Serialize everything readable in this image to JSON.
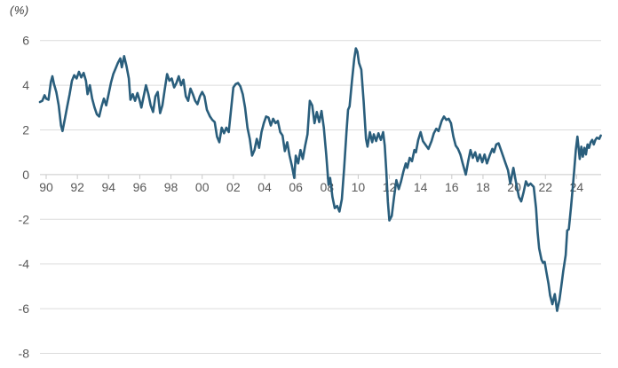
{
  "chart_data": {
    "type": "line",
    "title": "",
    "unit_label": "(%)",
    "legend": "none",
    "grid": "horizontal",
    "y_ticks": [
      6,
      4,
      2,
      0,
      -2,
      -4,
      -6,
      -8
    ],
    "ylim": [
      -8,
      6
    ],
    "x_tick_labels": [
      "90",
      "92",
      "94",
      "96",
      "98",
      "00",
      "02",
      "04",
      "06",
      "08",
      "10",
      "12",
      "14",
      "16",
      "18",
      "20",
      "22",
      "24"
    ],
    "x_tick_years": [
      1990,
      1992,
      1994,
      1996,
      1998,
      2000,
      2002,
      2004,
      2006,
      2008,
      2010,
      2012,
      2014,
      2016,
      2018,
      2020,
      2022,
      2024
    ],
    "x_range_years": [
      1989.6,
      2025.6
    ],
    "colors": {
      "line": "#2a5e7c",
      "gridline": "#dcdcdc",
      "axis_line": "#c9c9c9",
      "tick_label": "#595959",
      "unit_label": "#3a3a3a",
      "background": "#ffffff"
    },
    "series": [
      {
        "name": "year-over-year-change-pct",
        "points": [
          [
            1989.6,
            3.25
          ],
          [
            1989.75,
            3.3
          ],
          [
            1989.9,
            3.55
          ],
          [
            1990.0,
            3.4
          ],
          [
            1990.15,
            3.35
          ],
          [
            1990.3,
            4.15
          ],
          [
            1990.4,
            4.4
          ],
          [
            1990.5,
            4.05
          ],
          [
            1990.65,
            3.7
          ],
          [
            1990.8,
            3.1
          ],
          [
            1990.95,
            2.2
          ],
          [
            1991.05,
            1.95
          ],
          [
            1991.2,
            2.5
          ],
          [
            1991.35,
            3.05
          ],
          [
            1991.5,
            3.6
          ],
          [
            1991.65,
            4.2
          ],
          [
            1991.8,
            4.45
          ],
          [
            1991.95,
            4.3
          ],
          [
            1992.1,
            4.6
          ],
          [
            1992.25,
            4.35
          ],
          [
            1992.4,
            4.55
          ],
          [
            1992.55,
            4.2
          ],
          [
            1992.65,
            3.6
          ],
          [
            1992.8,
            4.0
          ],
          [
            1992.95,
            3.4
          ],
          [
            1993.1,
            3.0
          ],
          [
            1993.25,
            2.7
          ],
          [
            1993.4,
            2.6
          ],
          [
            1993.55,
            3.05
          ],
          [
            1993.7,
            3.4
          ],
          [
            1993.85,
            3.1
          ],
          [
            1994.0,
            3.6
          ],
          [
            1994.15,
            4.1
          ],
          [
            1994.3,
            4.5
          ],
          [
            1994.45,
            4.75
          ],
          [
            1994.6,
            5.0
          ],
          [
            1994.75,
            5.2
          ],
          [
            1994.85,
            4.8
          ],
          [
            1995.0,
            5.3
          ],
          [
            1995.15,
            4.85
          ],
          [
            1995.3,
            4.3
          ],
          [
            1995.4,
            3.35
          ],
          [
            1995.55,
            3.6
          ],
          [
            1995.7,
            3.3
          ],
          [
            1995.85,
            3.65
          ],
          [
            1996.0,
            3.3
          ],
          [
            1996.1,
            3.0
          ],
          [
            1996.25,
            3.5
          ],
          [
            1996.4,
            4.0
          ],
          [
            1996.55,
            3.6
          ],
          [
            1996.7,
            3.1
          ],
          [
            1996.85,
            2.8
          ],
          [
            1997.0,
            3.5
          ],
          [
            1997.15,
            3.7
          ],
          [
            1997.3,
            2.75
          ],
          [
            1997.45,
            3.1
          ],
          [
            1997.6,
            3.8
          ],
          [
            1997.75,
            4.5
          ],
          [
            1997.9,
            4.2
          ],
          [
            1998.05,
            4.3
          ],
          [
            1998.2,
            3.9
          ],
          [
            1998.35,
            4.1
          ],
          [
            1998.5,
            4.4
          ],
          [
            1998.65,
            4.0
          ],
          [
            1998.8,
            4.25
          ],
          [
            1998.95,
            3.5
          ],
          [
            1999.1,
            3.3
          ],
          [
            1999.25,
            3.85
          ],
          [
            1999.4,
            3.6
          ],
          [
            1999.55,
            3.3
          ],
          [
            1999.7,
            3.15
          ],
          [
            1999.85,
            3.5
          ],
          [
            2000.0,
            3.7
          ],
          [
            2000.15,
            3.5
          ],
          [
            2000.3,
            2.9
          ],
          [
            2000.5,
            2.6
          ],
          [
            2000.65,
            2.45
          ],
          [
            2000.8,
            2.35
          ],
          [
            2000.95,
            1.7
          ],
          [
            2001.1,
            1.45
          ],
          [
            2001.25,
            2.1
          ],
          [
            2001.4,
            1.85
          ],
          [
            2001.55,
            2.1
          ],
          [
            2001.7,
            1.9
          ],
          [
            2001.85,
            2.9
          ],
          [
            2002.0,
            3.9
          ],
          [
            2002.15,
            4.05
          ],
          [
            2002.3,
            4.1
          ],
          [
            2002.45,
            3.95
          ],
          [
            2002.6,
            3.6
          ],
          [
            2002.75,
            3.0
          ],
          [
            2002.9,
            2.1
          ],
          [
            2003.05,
            1.6
          ],
          [
            2003.2,
            0.85
          ],
          [
            2003.35,
            1.1
          ],
          [
            2003.5,
            1.6
          ],
          [
            2003.65,
            1.2
          ],
          [
            2003.8,
            1.9
          ],
          [
            2003.95,
            2.3
          ],
          [
            2004.1,
            2.6
          ],
          [
            2004.25,
            2.55
          ],
          [
            2004.4,
            2.2
          ],
          [
            2004.55,
            2.5
          ],
          [
            2004.7,
            2.3
          ],
          [
            2004.85,
            2.4
          ],
          [
            2005.0,
            1.9
          ],
          [
            2005.15,
            1.75
          ],
          [
            2005.3,
            1.05
          ],
          [
            2005.45,
            1.45
          ],
          [
            2005.6,
            0.85
          ],
          [
            2005.75,
            0.4
          ],
          [
            2005.9,
            -0.15
          ],
          [
            2006.0,
            0.85
          ],
          [
            2006.15,
            0.5
          ],
          [
            2006.3,
            1.1
          ],
          [
            2006.45,
            0.7
          ],
          [
            2006.6,
            1.3
          ],
          [
            2006.75,
            1.8
          ],
          [
            2006.9,
            3.3
          ],
          [
            2007.05,
            3.1
          ],
          [
            2007.2,
            2.3
          ],
          [
            2007.35,
            2.8
          ],
          [
            2007.5,
            2.35
          ],
          [
            2007.65,
            2.85
          ],
          [
            2007.8,
            2.1
          ],
          [
            2007.95,
            0.9
          ],
          [
            2008.1,
            -0.45
          ],
          [
            2008.2,
            -0.15
          ],
          [
            2008.35,
            -1.0
          ],
          [
            2008.5,
            -1.5
          ],
          [
            2008.65,
            -1.4
          ],
          [
            2008.8,
            -1.65
          ],
          [
            2008.95,
            -1.1
          ],
          [
            2009.1,
            0.3
          ],
          [
            2009.25,
            1.9
          ],
          [
            2009.35,
            2.9
          ],
          [
            2009.45,
            3.05
          ],
          [
            2009.6,
            4.2
          ],
          [
            2009.75,
            5.2
          ],
          [
            2009.85,
            5.65
          ],
          [
            2009.95,
            5.5
          ],
          [
            2010.05,
            5.0
          ],
          [
            2010.2,
            4.7
          ],
          [
            2010.35,
            3.3
          ],
          [
            2010.5,
            1.6
          ],
          [
            2010.6,
            1.25
          ],
          [
            2010.75,
            1.9
          ],
          [
            2010.9,
            1.45
          ],
          [
            2011.0,
            1.8
          ],
          [
            2011.15,
            1.5
          ],
          [
            2011.3,
            1.85
          ],
          [
            2011.45,
            1.55
          ],
          [
            2011.6,
            1.9
          ],
          [
            2011.7,
            1.3
          ],
          [
            2011.8,
            0.2
          ],
          [
            2011.9,
            -1.2
          ],
          [
            2012.0,
            -2.05
          ],
          [
            2012.15,
            -1.85
          ],
          [
            2012.3,
            -1.0
          ],
          [
            2012.45,
            -0.25
          ],
          [
            2012.6,
            -0.65
          ],
          [
            2012.75,
            -0.3
          ],
          [
            2012.9,
            0.15
          ],
          [
            2013.05,
            0.5
          ],
          [
            2013.15,
            0.3
          ],
          [
            2013.3,
            0.75
          ],
          [
            2013.45,
            0.6
          ],
          [
            2013.6,
            1.1
          ],
          [
            2013.7,
            1.0
          ],
          [
            2013.85,
            1.55
          ],
          [
            2014.0,
            1.9
          ],
          [
            2014.15,
            1.5
          ],
          [
            2014.35,
            1.3
          ],
          [
            2014.5,
            1.15
          ],
          [
            2014.7,
            1.5
          ],
          [
            2014.85,
            1.85
          ],
          [
            2015.0,
            2.05
          ],
          [
            2015.15,
            1.95
          ],
          [
            2015.35,
            2.4
          ],
          [
            2015.5,
            2.6
          ],
          [
            2015.65,
            2.45
          ],
          [
            2015.8,
            2.5
          ],
          [
            2015.95,
            2.3
          ],
          [
            2016.1,
            1.7
          ],
          [
            2016.25,
            1.3
          ],
          [
            2016.4,
            1.15
          ],
          [
            2016.55,
            0.9
          ],
          [
            2016.7,
            0.5
          ],
          [
            2016.9,
            0.0
          ],
          [
            2017.05,
            0.6
          ],
          [
            2017.2,
            1.1
          ],
          [
            2017.35,
            0.75
          ],
          [
            2017.5,
            1.0
          ],
          [
            2017.65,
            0.6
          ],
          [
            2017.8,
            0.9
          ],
          [
            2017.95,
            0.55
          ],
          [
            2018.1,
            0.9
          ],
          [
            2018.25,
            0.5
          ],
          [
            2018.45,
            0.9
          ],
          [
            2018.6,
            1.15
          ],
          [
            2018.7,
            1.0
          ],
          [
            2018.85,
            1.35
          ],
          [
            2019.0,
            1.4
          ],
          [
            2019.15,
            1.1
          ],
          [
            2019.3,
            0.8
          ],
          [
            2019.45,
            0.5
          ],
          [
            2019.6,
            0.2
          ],
          [
            2019.75,
            -0.4
          ],
          [
            2019.95,
            0.3
          ],
          [
            2020.1,
            -0.3
          ],
          [
            2020.3,
            -1.0
          ],
          [
            2020.45,
            -1.2
          ],
          [
            2020.6,
            -0.8
          ],
          [
            2020.75,
            -0.3
          ],
          [
            2020.9,
            -0.5
          ],
          [
            2021.05,
            -0.4
          ],
          [
            2021.25,
            -0.55
          ],
          [
            2021.4,
            -1.5
          ],
          [
            2021.5,
            -2.6
          ],
          [
            2021.6,
            -3.3
          ],
          [
            2021.75,
            -3.8
          ],
          [
            2021.85,
            -3.95
          ],
          [
            2021.95,
            -3.9
          ],
          [
            2022.05,
            -4.3
          ],
          [
            2022.2,
            -4.9
          ],
          [
            2022.3,
            -5.4
          ],
          [
            2022.45,
            -5.8
          ],
          [
            2022.6,
            -5.35
          ],
          [
            2022.75,
            -6.1
          ],
          [
            2022.9,
            -5.6
          ],
          [
            2023.0,
            -5.1
          ],
          [
            2023.15,
            -4.3
          ],
          [
            2023.3,
            -3.6
          ],
          [
            2023.4,
            -2.5
          ],
          [
            2023.5,
            -2.45
          ],
          [
            2023.65,
            -1.4
          ],
          [
            2023.75,
            -0.6
          ],
          [
            2023.85,
            0.2
          ],
          [
            2023.95,
            1.1
          ],
          [
            2024.05,
            1.7
          ],
          [
            2024.2,
            0.7
          ],
          [
            2024.3,
            1.25
          ],
          [
            2024.4,
            0.8
          ],
          [
            2024.5,
            1.2
          ],
          [
            2024.6,
            0.9
          ],
          [
            2024.7,
            1.35
          ],
          [
            2024.8,
            1.2
          ],
          [
            2024.9,
            1.45
          ],
          [
            2025.0,
            1.55
          ],
          [
            2025.1,
            1.35
          ],
          [
            2025.2,
            1.55
          ],
          [
            2025.3,
            1.65
          ],
          [
            2025.45,
            1.6
          ],
          [
            2025.55,
            1.75
          ]
        ]
      }
    ]
  }
}
